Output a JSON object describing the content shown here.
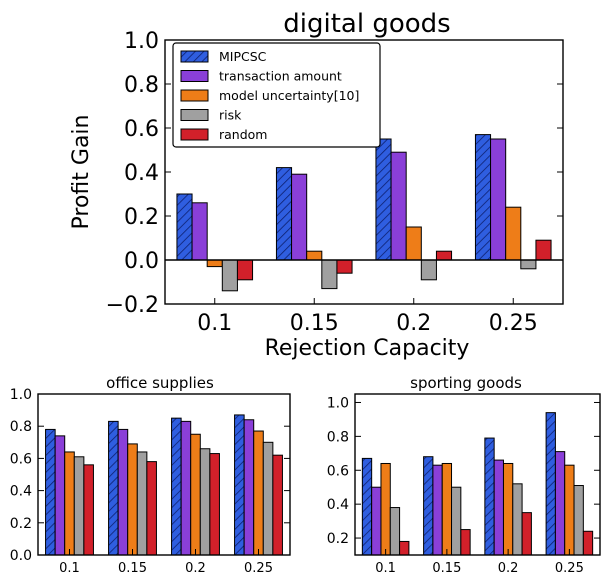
{
  "series_styles": [
    {
      "name": "MIPCSC",
      "color": "#2f5ee0",
      "hatch": true
    },
    {
      "name": "transaction amount",
      "color": "#8a3fd8",
      "hatch": false
    },
    {
      "name": "model uncertainty[10]",
      "color": "#ee7d18",
      "hatch": false
    },
    {
      "name": "risk",
      "color": "#a0a0a0",
      "hatch": false
    },
    {
      "name": "random",
      "color": "#d2202a",
      "hatch": false
    }
  ],
  "chart_data": [
    {
      "type": "bar",
      "title": "digital goods",
      "xlabel": "Rejection Capacity",
      "ylabel": "Profit Gain",
      "categories": [
        "0.1",
        "0.15",
        "0.2",
        "0.25"
      ],
      "ylim": [
        -0.2,
        1.0
      ],
      "yticks": [
        "−0.2",
        "0.0",
        "0.2",
        "0.4",
        "0.6",
        "0.8",
        "1.0"
      ],
      "legend": "top-left",
      "series": [
        {
          "name": "MIPCSC",
          "values": [
            0.3,
            0.42,
            0.55,
            0.57
          ]
        },
        {
          "name": "transaction amount",
          "values": [
            0.26,
            0.39,
            0.49,
            0.55
          ]
        },
        {
          "name": "model uncertainty[10]",
          "values": [
            -0.03,
            0.04,
            0.15,
            0.24
          ]
        },
        {
          "name": "risk",
          "values": [
            -0.14,
            -0.13,
            -0.09,
            -0.04
          ]
        },
        {
          "name": "random",
          "values": [
            -0.09,
            -0.06,
            0.04,
            0.09
          ]
        }
      ]
    },
    {
      "type": "bar",
      "title": "office supplies",
      "xlabel": "",
      "ylabel": "",
      "categories": [
        "0.1",
        "0.15",
        "0.2",
        "0.25"
      ],
      "ylim": [
        0.0,
        1.0
      ],
      "yticks": [
        "0.0",
        "0.2",
        "0.4",
        "0.6",
        "0.8",
        "1.0"
      ],
      "series": [
        {
          "name": "MIPCSC",
          "values": [
            0.78,
            0.83,
            0.85,
            0.87
          ]
        },
        {
          "name": "transaction amount",
          "values": [
            0.74,
            0.78,
            0.83,
            0.84
          ]
        },
        {
          "name": "model uncertainty[10]",
          "values": [
            0.64,
            0.69,
            0.75,
            0.77
          ]
        },
        {
          "name": "risk",
          "values": [
            0.61,
            0.64,
            0.66,
            0.7
          ]
        },
        {
          "name": "random",
          "values": [
            0.56,
            0.58,
            0.63,
            0.62
          ]
        }
      ]
    },
    {
      "type": "bar",
      "title": "sporting goods",
      "xlabel": "",
      "ylabel": "",
      "categories": [
        "0.1",
        "0.15",
        "0.2",
        "0.25"
      ],
      "ylim": [
        0.1,
        1.05
      ],
      "yticks": [
        "0.2",
        "0.4",
        "0.6",
        "0.8",
        "1.0"
      ],
      "series": [
        {
          "name": "MIPCSC",
          "values": [
            0.67,
            0.68,
            0.79,
            0.94
          ]
        },
        {
          "name": "transaction amount",
          "values": [
            0.5,
            0.63,
            0.66,
            0.71
          ]
        },
        {
          "name": "model uncertainty[10]",
          "values": [
            0.64,
            0.64,
            0.64,
            0.63
          ]
        },
        {
          "name": "risk",
          "values": [
            0.38,
            0.5,
            0.52,
            0.51
          ]
        },
        {
          "name": "random",
          "values": [
            0.18,
            0.25,
            0.35,
            0.24
          ]
        }
      ]
    }
  ]
}
